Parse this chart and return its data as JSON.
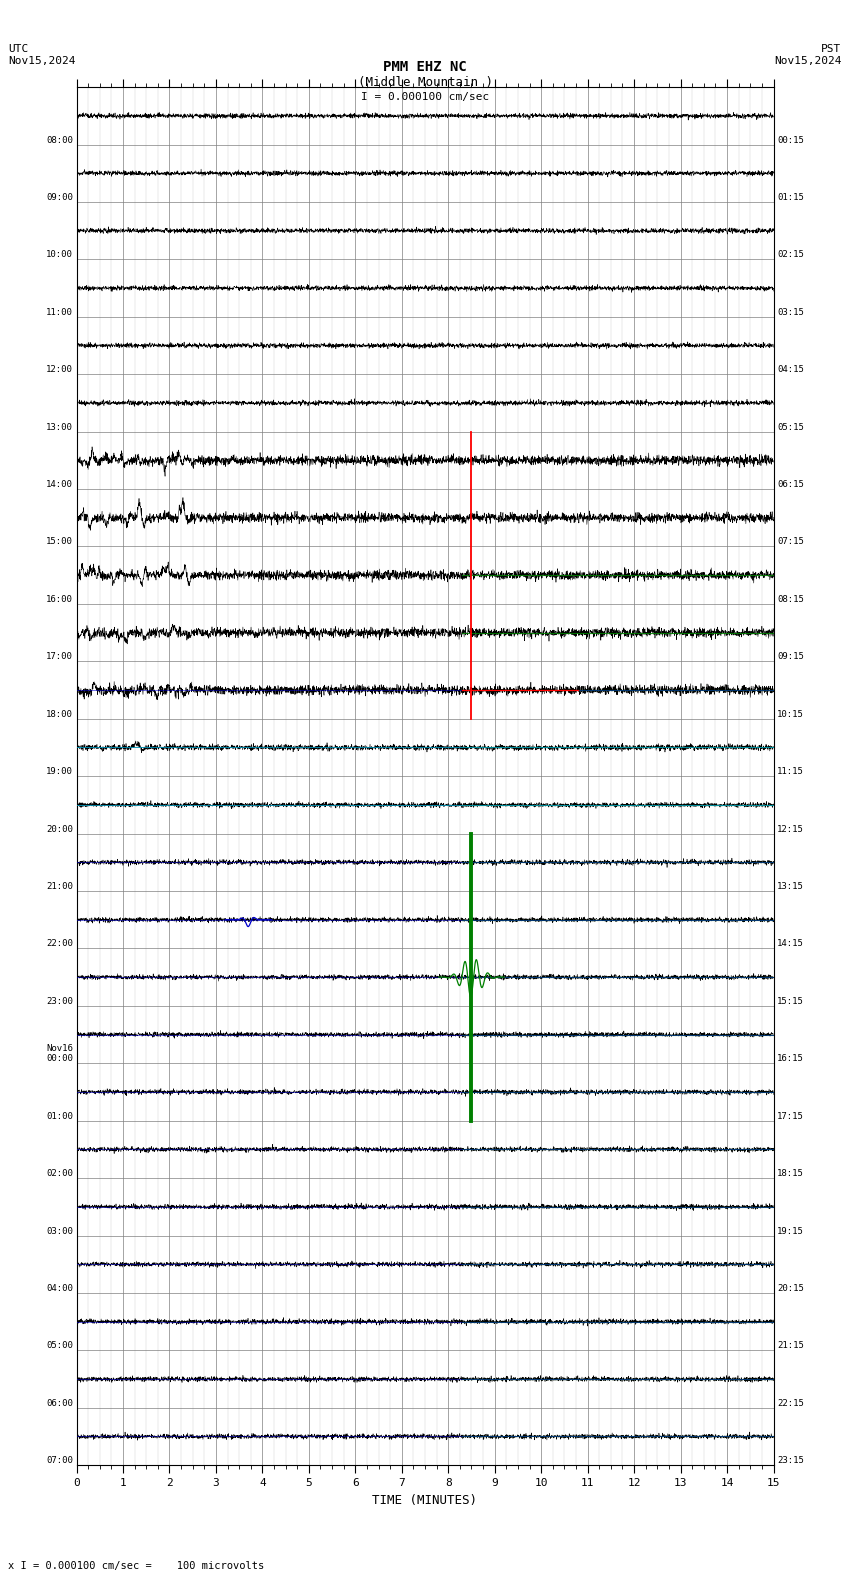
{
  "title_line1": "PMM EHZ NC",
  "title_line2": "(Middle Mountain )",
  "scale_label": "I = 0.000100 cm/sec",
  "footer_label": "x I = 0.000100 cm/sec =    100 microvolts",
  "utc_label": "UTC\nNov15,2024",
  "pst_label": "PST\nNov15,2024",
  "xlabel": "TIME (MINUTES)",
  "xmin": 0,
  "xmax": 15,
  "num_rows": 24,
  "row_labels_utc": [
    "08:00",
    "09:00",
    "10:00",
    "11:00",
    "12:00",
    "13:00",
    "14:00",
    "15:00",
    "16:00",
    "17:00",
    "18:00",
    "19:00",
    "20:00",
    "21:00",
    "22:00",
    "23:00",
    "Nov16\n00:00",
    "01:00",
    "02:00",
    "03:00",
    "04:00",
    "05:00",
    "06:00",
    "07:00"
  ],
  "row_labels_pst": [
    "00:15",
    "01:15",
    "02:15",
    "03:15",
    "04:15",
    "05:15",
    "06:15",
    "07:15",
    "08:15",
    "09:15",
    "10:15",
    "11:15",
    "12:15",
    "13:15",
    "14:15",
    "15:15",
    "16:15",
    "17:15",
    "18:15",
    "19:15",
    "20:15",
    "21:15",
    "22:15",
    "23:15"
  ],
  "bg_color": "#ffffff",
  "grid_color": "#808080",
  "seismo_color": "#000000",
  "green_line_color": "#008000",
  "blue_line_color": "#0000cd",
  "red_line_color": "#ff0000",
  "cyan_line_color": "#00aaaa",
  "noise_amplitude": 0.02,
  "amplitude_scale": 0.35
}
